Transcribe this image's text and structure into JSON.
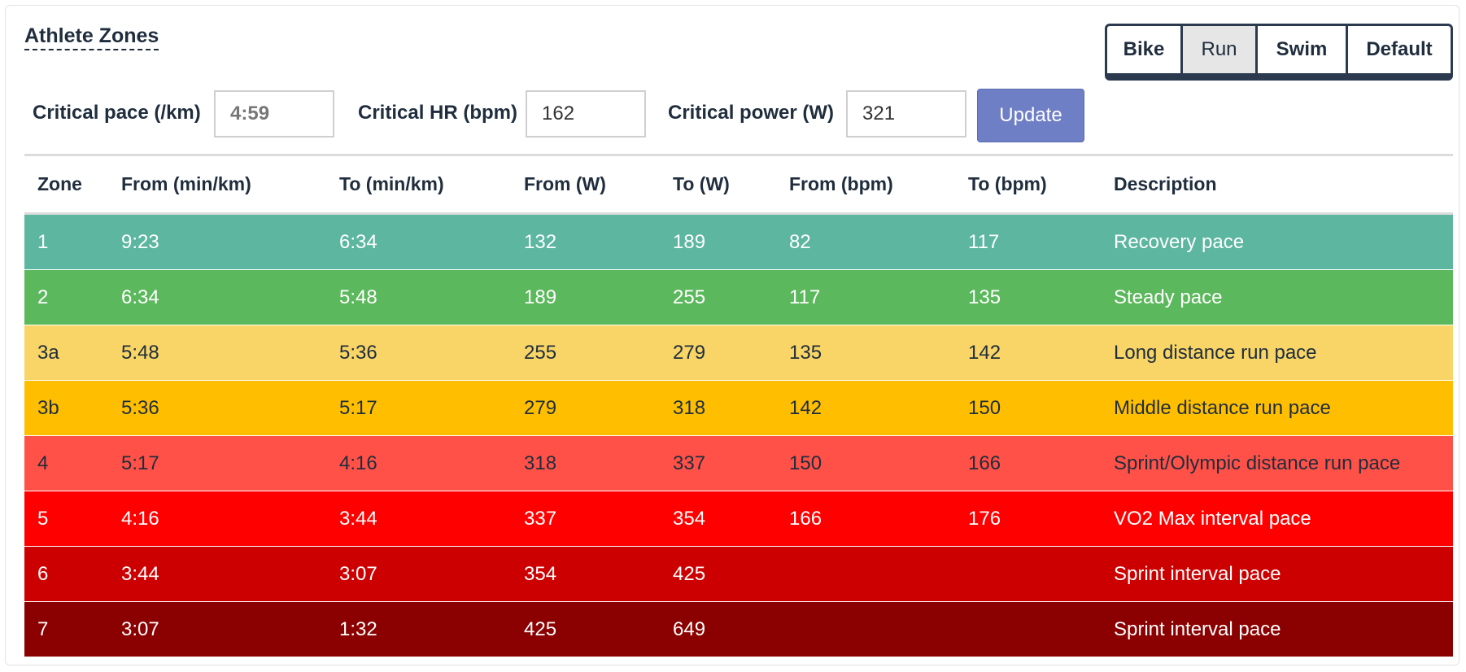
{
  "title": "Athlete Zones",
  "sports": [
    {
      "label": "Bike",
      "active": false
    },
    {
      "label": "Run",
      "active": true
    },
    {
      "label": "Swim",
      "active": false
    },
    {
      "label": "Default",
      "active": false
    }
  ],
  "inputs": {
    "pace_label": "Critical pace (/km)",
    "pace_value": "4:59",
    "hr_label": "Critical HR (bpm)",
    "hr_value": "162",
    "power_label": "Critical power (W)",
    "power_value": "321",
    "update_label": "Update"
  },
  "table": {
    "headers": [
      "Zone",
      "From (min/km)",
      "To (min/km)",
      "From (W)",
      "To (W)",
      "From (bpm)",
      "To (bpm)",
      "Description"
    ],
    "rows": [
      {
        "cells": [
          "1",
          "9:23",
          "6:34",
          "132",
          "189",
          "82",
          "117",
          "Recovery pace"
        ],
        "bg": "#5cb6a0",
        "fg": "#ffffff"
      },
      {
        "cells": [
          "2",
          "6:34",
          "5:48",
          "189",
          "255",
          "117",
          "135",
          "Steady pace"
        ],
        "bg": "#5cb85c",
        "fg": "#ffffff"
      },
      {
        "cells": [
          "3a",
          "5:48",
          "5:36",
          "255",
          "279",
          "135",
          "142",
          "Long distance run pace"
        ],
        "bg": "#f8d566",
        "fg": "#1f2d3d"
      },
      {
        "cells": [
          "3b",
          "5:36",
          "5:17",
          "279",
          "318",
          "142",
          "150",
          "Middle distance run pace"
        ],
        "bg": "#ffbf00",
        "fg": "#1f2d3d"
      },
      {
        "cells": [
          "4",
          "5:17",
          "4:16",
          "318",
          "337",
          "150",
          "166",
          "Sprint/Olympic distance run pace"
        ],
        "bg": "#ff5148",
        "fg": "#1f2d3d"
      },
      {
        "cells": [
          "5",
          "4:16",
          "3:44",
          "337",
          "354",
          "166",
          "176",
          "VO2 Max interval pace"
        ],
        "bg": "#ff0000",
        "fg": "#ffffff"
      },
      {
        "cells": [
          "6",
          "3:44",
          "3:07",
          "354",
          "425",
          "",
          "",
          "Sprint interval pace"
        ],
        "bg": "#cc0000",
        "fg": "#ffffff"
      },
      {
        "cells": [
          "7",
          "3:07",
          "1:32",
          "425",
          "649",
          "",
          "",
          "Sprint interval pace"
        ],
        "bg": "#8b0000",
        "fg": "#ffffff"
      }
    ]
  }
}
